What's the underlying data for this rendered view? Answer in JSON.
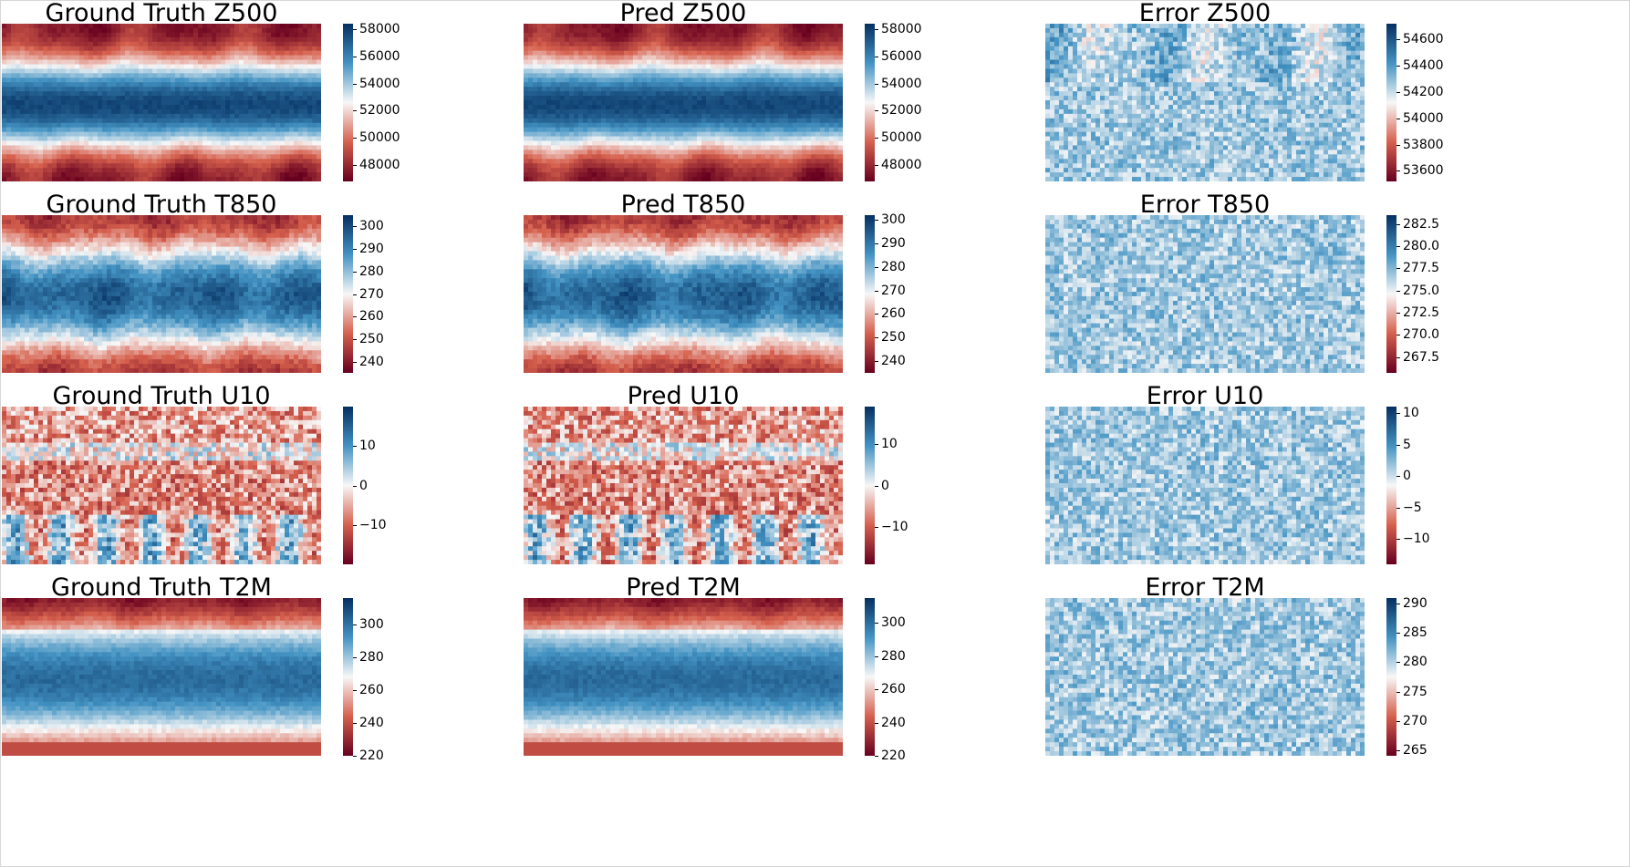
{
  "colormap": {
    "name": "RdBu",
    "low": "#67001f",
    "mid": "#f7f7f7",
    "high": "#053061"
  },
  "chart_data": [
    {
      "type": "heatmap",
      "title": "Ground Truth Z500",
      "colorbar": {
        "range": [
          46800,
          58400
        ],
        "ticks": [
          "48000",
          "50000",
          "52000",
          "54000",
          "56000",
          "58000"
        ],
        "tick_values": [
          48000,
          50000,
          52000,
          54000,
          56000,
          58000
        ]
      },
      "field": "z500",
      "kind": "truth"
    },
    {
      "type": "heatmap",
      "title": "Pred Z500",
      "colorbar": {
        "range": [
          46800,
          58400
        ],
        "ticks": [
          "48000",
          "50000",
          "52000",
          "54000",
          "56000",
          "58000"
        ],
        "tick_values": [
          48000,
          50000,
          52000,
          54000,
          56000,
          58000
        ]
      },
      "field": "z500",
      "kind": "pred"
    },
    {
      "type": "heatmap",
      "title": "Error Z500",
      "colorbar": {
        "range": [
          53520,
          54720
        ],
        "ticks": [
          "53600",
          "53800",
          "54000",
          "54200",
          "54400",
          "54600"
        ],
        "tick_values": [
          53600,
          53800,
          54000,
          54200,
          54400,
          54600
        ]
      },
      "field": "z500",
      "kind": "error"
    },
    {
      "type": "heatmap",
      "title": "Ground Truth T850",
      "colorbar": {
        "range": [
          235,
          305
        ],
        "ticks": [
          "240",
          "250",
          "260",
          "270",
          "280",
          "290",
          "300"
        ],
        "tick_values": [
          240,
          250,
          260,
          270,
          280,
          290,
          300
        ]
      },
      "field": "t850",
      "kind": "truth"
    },
    {
      "type": "heatmap",
      "title": "Pred T850",
      "colorbar": {
        "range": [
          235,
          302
        ],
        "ticks": [
          "240",
          "250",
          "260",
          "270",
          "280",
          "290",
          "300"
        ],
        "tick_values": [
          240,
          250,
          260,
          270,
          280,
          290,
          300
        ]
      },
      "field": "t850",
      "kind": "pred"
    },
    {
      "type": "heatmap",
      "title": "Error T850",
      "colorbar": {
        "range": [
          265.7,
          283.5
        ],
        "ticks": [
          "267.5",
          "270.0",
          "272.5",
          "275.0",
          "277.5",
          "280.0",
          "282.5"
        ],
        "tick_values": [
          267.5,
          270,
          272.5,
          275,
          277.5,
          280,
          282.5
        ]
      },
      "field": "t850",
      "kind": "error"
    },
    {
      "type": "heatmap",
      "title": "Ground Truth U10",
      "colorbar": {
        "range": [
          -20,
          20
        ],
        "ticks": [
          "−10",
          "0",
          "10"
        ],
        "tick_values": [
          -10,
          0,
          10
        ]
      },
      "field": "u10",
      "kind": "truth"
    },
    {
      "type": "heatmap",
      "title": "Pred U10",
      "colorbar": {
        "range": [
          -19,
          19
        ],
        "ticks": [
          "−10",
          "0",
          "10"
        ],
        "tick_values": [
          -10,
          0,
          10
        ]
      },
      "field": "u10",
      "kind": "pred"
    },
    {
      "type": "heatmap",
      "title": "Error U10",
      "colorbar": {
        "range": [
          -14,
          11
        ],
        "ticks": [
          "−10",
          "−5",
          "0",
          "5",
          "10"
        ],
        "tick_values": [
          -10,
          -5,
          0,
          5,
          10
        ]
      },
      "field": "u10",
      "kind": "error"
    },
    {
      "type": "heatmap",
      "title": "Ground Truth T2M",
      "colorbar": {
        "range": [
          220,
          316
        ],
        "ticks": [
          "220",
          "240",
          "260",
          "280",
          "300"
        ],
        "tick_values": [
          220,
          240,
          260,
          280,
          300
        ]
      },
      "field": "t2m",
      "kind": "truth"
    },
    {
      "type": "heatmap",
      "title": "Pred T2M",
      "colorbar": {
        "range": [
          220,
          315
        ],
        "ticks": [
          "220",
          "240",
          "260",
          "280",
          "300"
        ],
        "tick_values": [
          220,
          240,
          260,
          280,
          300
        ]
      },
      "field": "t2m",
      "kind": "pred"
    },
    {
      "type": "heatmap",
      "title": "Error T2M",
      "colorbar": {
        "range": [
          264,
          291
        ],
        "ticks": [
          "265",
          "270",
          "275",
          "280",
          "285",
          "290"
        ],
        "tick_values": [
          265,
          270,
          275,
          280,
          285,
          290
        ]
      },
      "field": "t2m",
      "kind": "error"
    }
  ]
}
